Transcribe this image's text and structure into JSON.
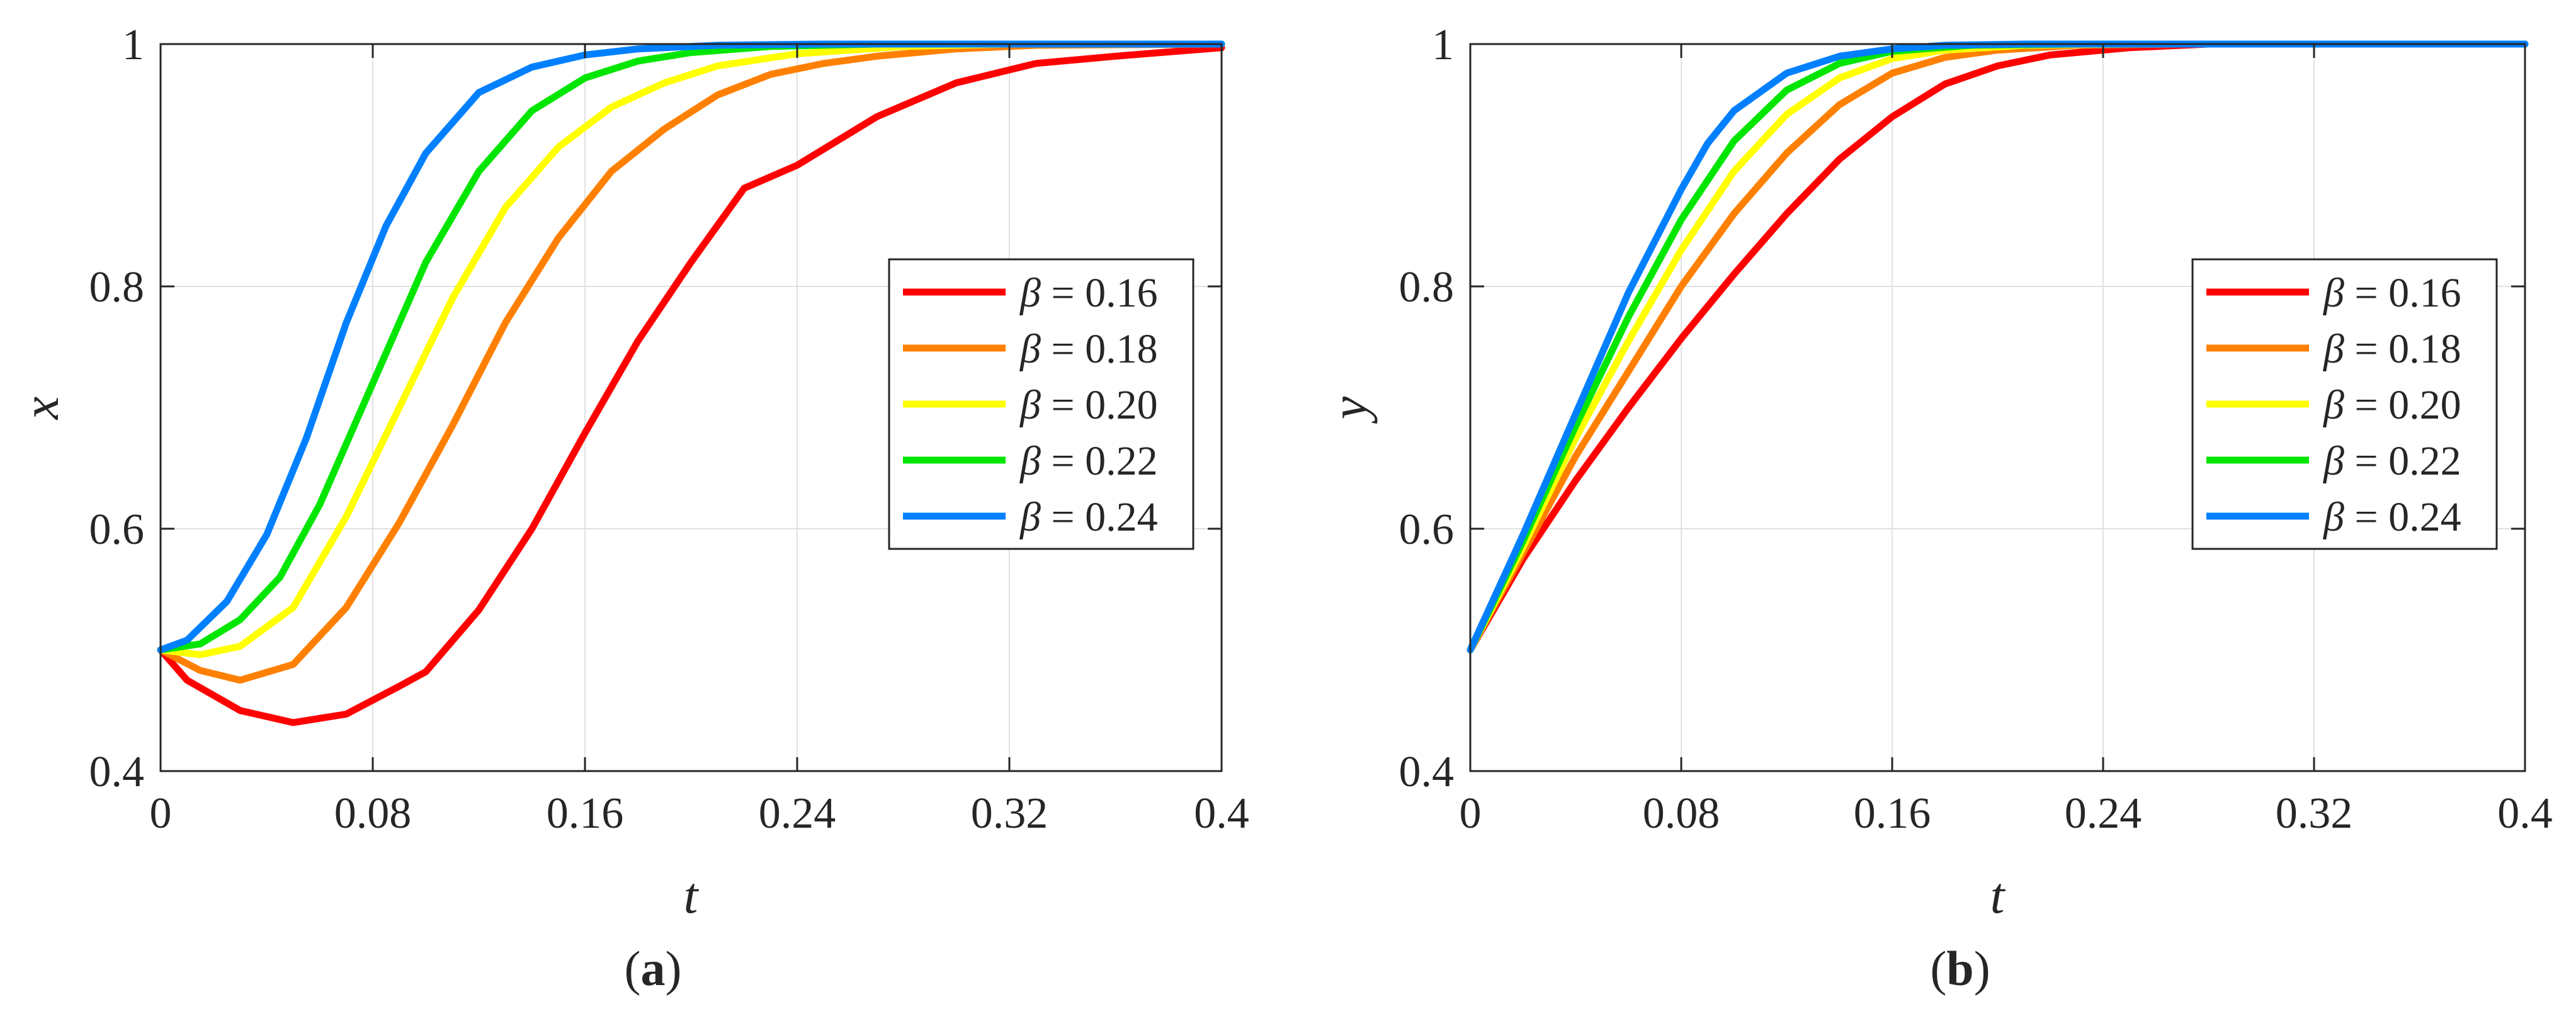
{
  "chart_data": [
    {
      "type": "line",
      "panel_label": "(a)",
      "panel_letter": "a",
      "xlabel": "t",
      "ylabel": "x",
      "xlim": [
        0,
        0.4
      ],
      "ylim": [
        0.4,
        1
      ],
      "xticks": [
        0,
        0.08,
        0.16,
        0.24,
        0.32,
        0.4
      ],
      "xtick_labels": [
        "0",
        "0.08",
        "0.16",
        "0.24",
        "0.32",
        "0.4"
      ],
      "yticks": [
        0.4,
        0.6,
        0.8,
        1
      ],
      "ytick_labels": [
        "0.4",
        "0.6",
        "0.8",
        "1"
      ],
      "grid": true,
      "legend_position": "right",
      "series": [
        {
          "name": "β = 0.16",
          "symbol": "β",
          "value_text": "= 0.16",
          "color": "#ff0000",
          "x": [
            0,
            0.01,
            0.03,
            0.05,
            0.07,
            0.09,
            0.1,
            0.12,
            0.14,
            0.16,
            0.18,
            0.2,
            0.22,
            0.24,
            0.27,
            0.3,
            0.33,
            0.36,
            0.4
          ],
          "y": [
            0.5,
            0.475,
            0.45,
            0.44,
            0.447,
            0.47,
            0.482,
            0.533,
            0.6,
            0.679,
            0.755,
            0.82,
            0.881,
            0.9,
            0.94,
            0.968,
            0.984,
            0.99,
            0.997
          ]
        },
        {
          "name": "β = 0.18",
          "symbol": "β",
          "value_text": "= 0.18",
          "color": "#ff8000",
          "x": [
            0,
            0.015,
            0.03,
            0.05,
            0.07,
            0.09,
            0.11,
            0.13,
            0.15,
            0.17,
            0.19,
            0.21,
            0.23,
            0.25,
            0.27,
            0.3,
            0.33,
            0.4
          ],
          "y": [
            0.5,
            0.483,
            0.475,
            0.488,
            0.535,
            0.605,
            0.685,
            0.77,
            0.84,
            0.895,
            0.93,
            0.958,
            0.975,
            0.984,
            0.99,
            0.996,
            0.999,
            1
          ]
        },
        {
          "name": "β = 0.20",
          "symbol": "β",
          "value_text": "= 0.20",
          "color": "#ffff00",
          "x": [
            0,
            0.015,
            0.03,
            0.05,
            0.07,
            0.09,
            0.11,
            0.13,
            0.15,
            0.17,
            0.19,
            0.21,
            0.24,
            0.28,
            0.32,
            0.4
          ],
          "y": [
            0.5,
            0.496,
            0.503,
            0.535,
            0.61,
            0.7,
            0.79,
            0.865,
            0.915,
            0.948,
            0.968,
            0.982,
            0.992,
            0.998,
            1,
            1
          ]
        },
        {
          "name": "β = 0.22",
          "symbol": "β",
          "value_text": "= 0.22",
          "color": "#00e600",
          "x": [
            0,
            0.015,
            0.03,
            0.045,
            0.06,
            0.08,
            0.1,
            0.12,
            0.14,
            0.16,
            0.18,
            0.2,
            0.23,
            0.27,
            0.4
          ],
          "y": [
            0.5,
            0.505,
            0.525,
            0.56,
            0.62,
            0.72,
            0.82,
            0.895,
            0.945,
            0.972,
            0.986,
            0.993,
            0.998,
            1,
            1
          ]
        },
        {
          "name": "β = 0.24",
          "symbol": "β",
          "value_text": "= 0.24",
          "color": "#0080ff",
          "x": [
            0,
            0.01,
            0.025,
            0.04,
            0.055,
            0.07,
            0.085,
            0.1,
            0.12,
            0.14,
            0.16,
            0.18,
            0.21,
            0.25,
            0.4
          ],
          "y": [
            0.5,
            0.508,
            0.54,
            0.595,
            0.675,
            0.77,
            0.85,
            0.91,
            0.96,
            0.981,
            0.991,
            0.996,
            0.999,
            1,
            1
          ]
        }
      ]
    },
    {
      "type": "line",
      "panel_label": "(b)",
      "panel_letter": "b",
      "xlabel": "t",
      "ylabel": "y",
      "xlim": [
        0,
        0.4
      ],
      "ylim": [
        0.4,
        1
      ],
      "xticks": [
        0,
        0.08,
        0.16,
        0.24,
        0.32,
        0.4
      ],
      "xtick_labels": [
        "0",
        "0.08",
        "0.16",
        "0.24",
        "0.32",
        "0.4"
      ],
      "yticks": [
        0.4,
        0.6,
        0.8,
        1
      ],
      "ytick_labels": [
        "0.4",
        "0.6",
        "0.8",
        "1"
      ],
      "grid": true,
      "legend_position": "right",
      "series": [
        {
          "name": "β = 0.16",
          "symbol": "β",
          "value_text": "= 0.16",
          "color": "#ff0000",
          "x": [
            0,
            0.02,
            0.04,
            0.06,
            0.08,
            0.1,
            0.12,
            0.14,
            0.16,
            0.18,
            0.2,
            0.22,
            0.25,
            0.28,
            0.4
          ],
          "y": [
            0.5,
            0.575,
            0.64,
            0.7,
            0.757,
            0.81,
            0.86,
            0.905,
            0.94,
            0.967,
            0.982,
            0.991,
            0.997,
            1,
            1
          ]
        },
        {
          "name": "β = 0.18",
          "symbol": "β",
          "value_text": "= 0.18",
          "color": "#ff8000",
          "x": [
            0,
            0.02,
            0.04,
            0.06,
            0.08,
            0.1,
            0.12,
            0.14,
            0.16,
            0.18,
            0.2,
            0.23,
            0.27,
            0.4
          ],
          "y": [
            0.5,
            0.58,
            0.66,
            0.73,
            0.8,
            0.86,
            0.91,
            0.95,
            0.976,
            0.989,
            0.995,
            0.999,
            1,
            1
          ]
        },
        {
          "name": "β = 0.20",
          "symbol": "β",
          "value_text": "= 0.20",
          "color": "#ffff00",
          "x": [
            0,
            0.02,
            0.04,
            0.06,
            0.08,
            0.1,
            0.12,
            0.14,
            0.16,
            0.18,
            0.21,
            0.25,
            0.4
          ],
          "y": [
            0.5,
            0.585,
            0.675,
            0.755,
            0.83,
            0.895,
            0.942,
            0.972,
            0.988,
            0.995,
            0.999,
            1,
            1
          ]
        },
        {
          "name": "β = 0.22",
          "symbol": "β",
          "value_text": "= 0.22",
          "color": "#00e600",
          "x": [
            0,
            0.02,
            0.04,
            0.06,
            0.08,
            0.1,
            0.12,
            0.14,
            0.16,
            0.19,
            0.23,
            0.4
          ],
          "y": [
            0.5,
            0.59,
            0.685,
            0.775,
            0.855,
            0.92,
            0.962,
            0.984,
            0.994,
            0.999,
            1,
            1
          ]
        },
        {
          "name": "β = 0.24",
          "symbol": "β",
          "value_text": "= 0.24",
          "color": "#0080ff",
          "x": [
            0,
            0.02,
            0.04,
            0.06,
            0.08,
            0.09,
            0.1,
            0.12,
            0.14,
            0.16,
            0.18,
            0.21,
            0.4
          ],
          "y": [
            0.5,
            0.595,
            0.695,
            0.795,
            0.88,
            0.918,
            0.945,
            0.976,
            0.99,
            0.996,
            0.999,
            1,
            1
          ]
        }
      ]
    }
  ]
}
